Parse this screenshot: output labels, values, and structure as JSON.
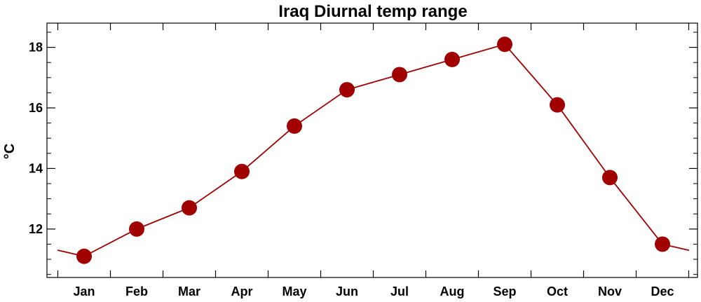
{
  "chart_data": {
    "type": "line",
    "title": "Iraq Diurnal temp range",
    "xlabel": "",
    "ylabel": "°C",
    "categories": [
      "Jan",
      "Feb",
      "Mar",
      "Apr",
      "May",
      "Jun",
      "Jul",
      "Aug",
      "Sep",
      "Oct",
      "Nov",
      "Dec"
    ],
    "series": [
      {
        "values": [
          11.1,
          12.0,
          12.7,
          13.9,
          15.4,
          16.6,
          17.1,
          17.6,
          18.1,
          16.1,
          13.7,
          11.5
        ]
      }
    ],
    "ylim": [
      10.4,
      18.8
    ],
    "yticks": [
      12,
      14,
      16,
      18
    ],
    "line_color": "#a00000",
    "marker_color": "#a00000",
    "grid": false,
    "wraps_around": true
  }
}
